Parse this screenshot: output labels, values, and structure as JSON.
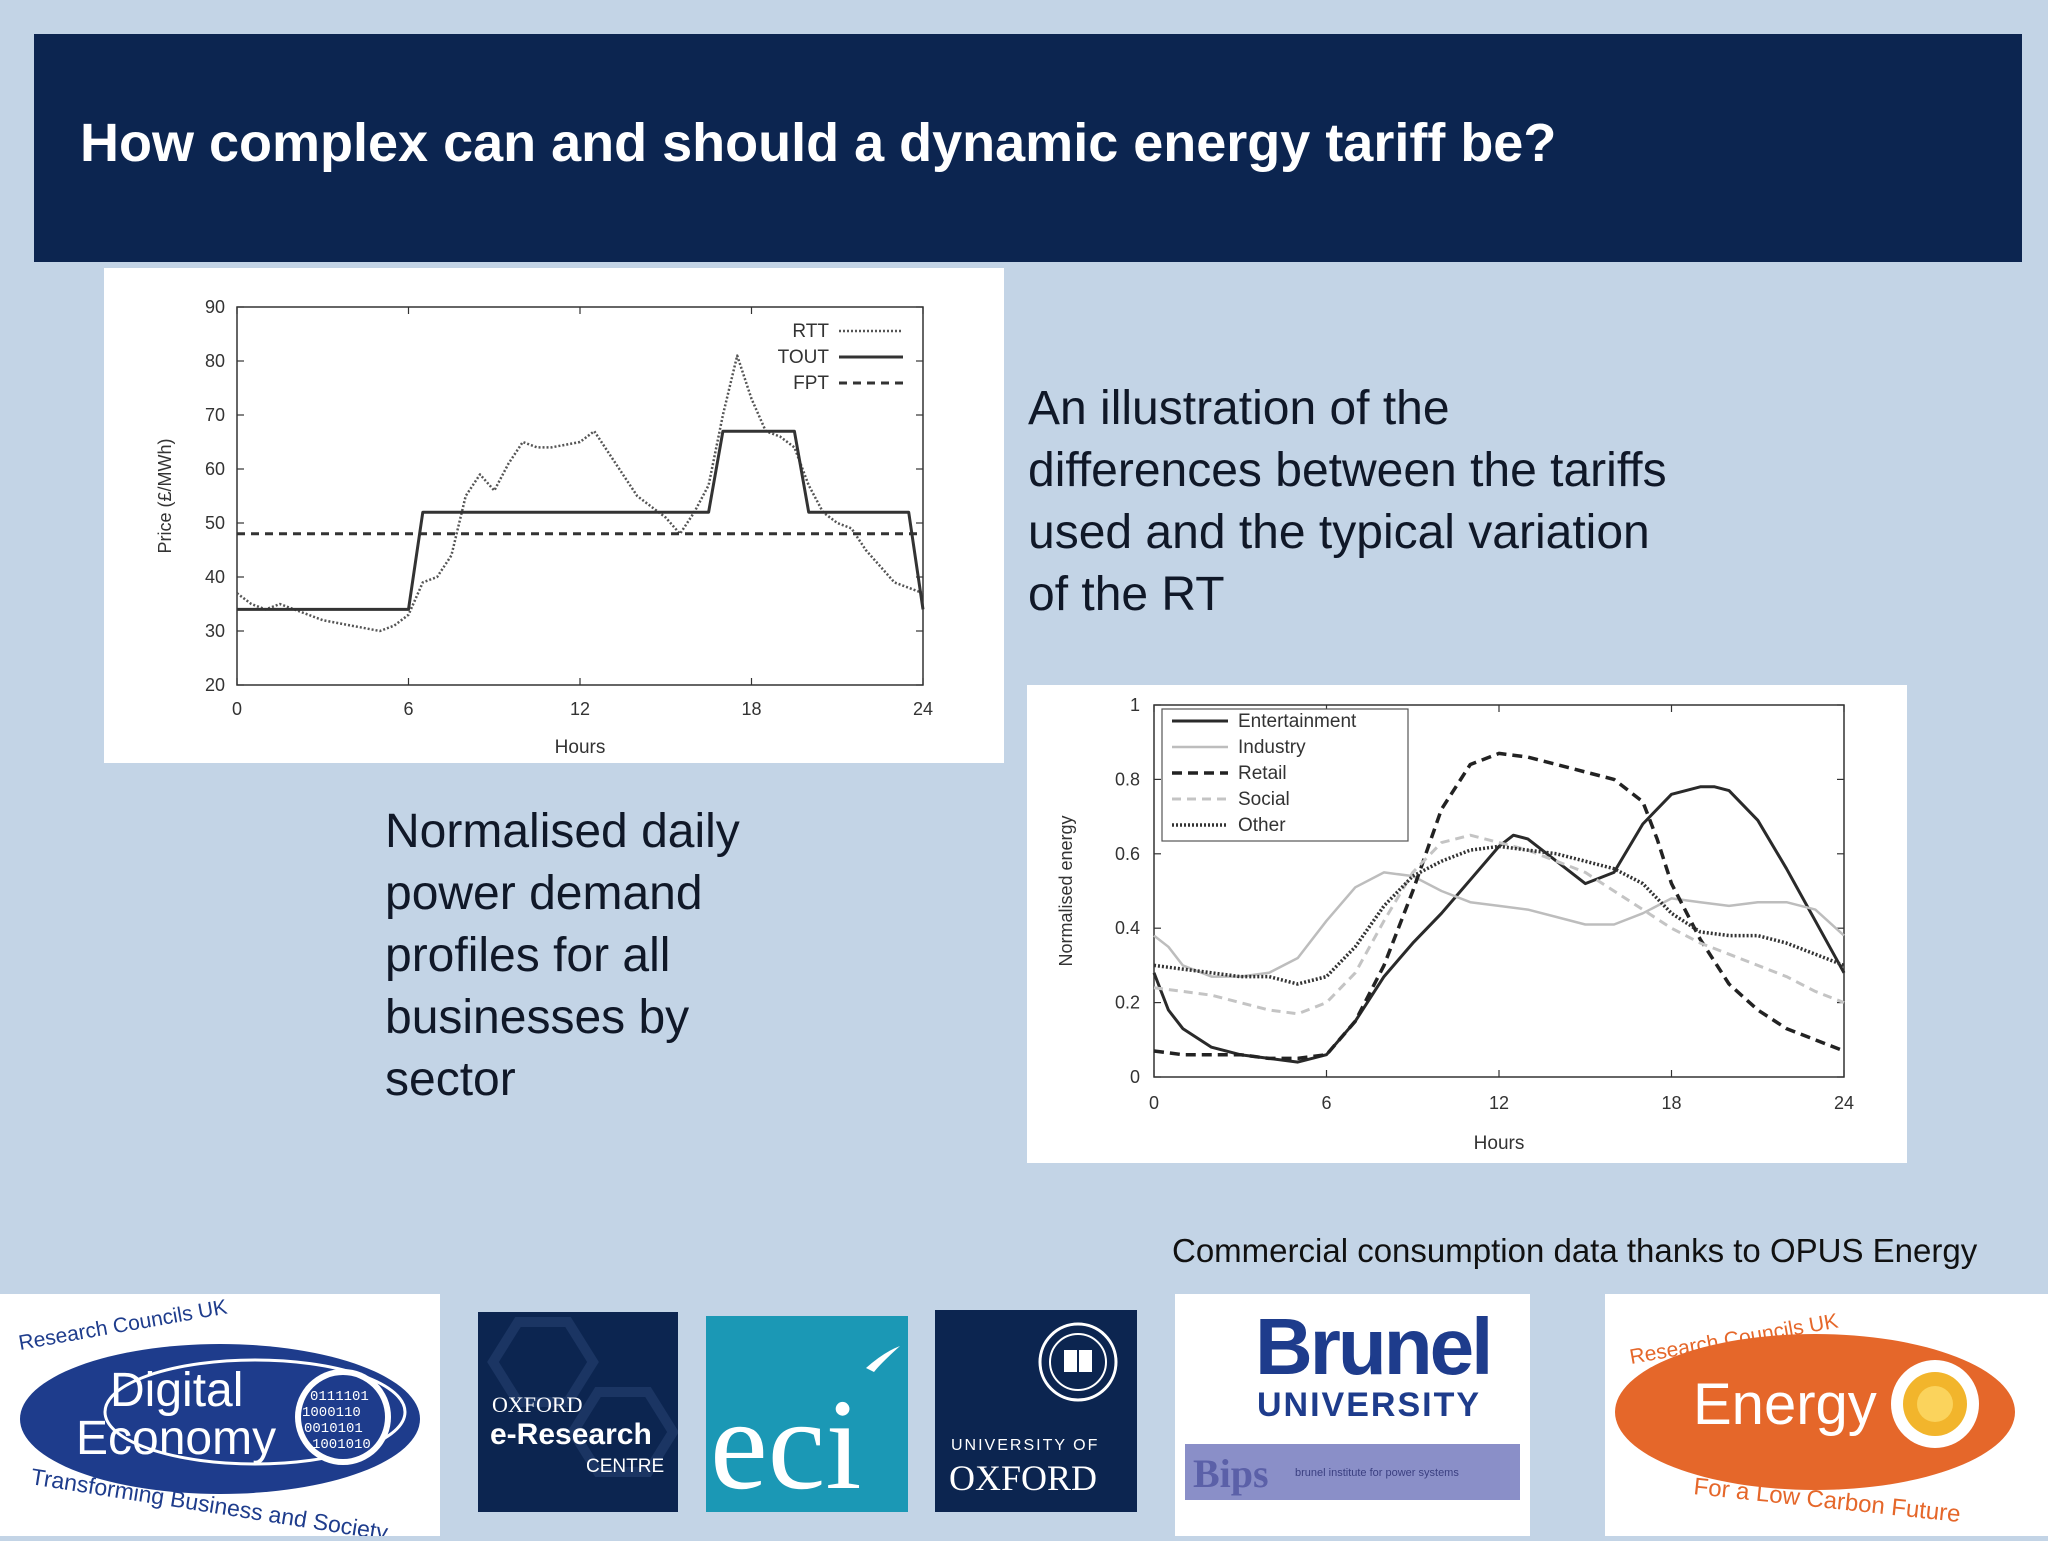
{
  "slide": {
    "title": "How complex can and should a dynamic energy tariff be?",
    "caption_right": "An illustration of the\ndifferences between the tariffs\nused and the typical variation\nof the RT",
    "caption_left": "Normalised daily\npower demand\nprofiles for all\nbusinesses by\nsector",
    "credit": "Commercial consumption data thanks to OPUS Energy"
  },
  "chart_data": [
    {
      "type": "line",
      "title": "",
      "xlabel": "Hours",
      "ylabel": "Price (£/MWh)",
      "xlim": [
        0,
        24
      ],
      "ylim": [
        20,
        90
      ],
      "xticks": [
        0,
        6,
        12,
        18,
        24
      ],
      "yticks": [
        20,
        30,
        40,
        50,
        60,
        70,
        80,
        90
      ],
      "legend_position": "top-right",
      "series": [
        {
          "name": "RTT",
          "style": "dotted",
          "x": [
            0,
            0.5,
            1,
            1.5,
            2,
            2.5,
            3,
            4,
            5,
            5.5,
            6,
            6.5,
            7,
            7.5,
            8,
            8.5,
            9,
            9.5,
            10,
            10.5,
            11,
            12,
            12.5,
            13,
            13.5,
            14,
            14.5,
            15,
            15.5,
            16,
            16.5,
            17,
            17.5,
            18,
            18.5,
            19,
            19.5,
            20,
            20.5,
            21,
            21.5,
            22,
            22.5,
            23,
            23.5,
            24
          ],
          "y": [
            37,
            35,
            34,
            35,
            34,
            33,
            32,
            31,
            30,
            31,
            33,
            39,
            40,
            44,
            55,
            59,
            56,
            61,
            65,
            64,
            64,
            65,
            67,
            63,
            59,
            55,
            53,
            51,
            48,
            52,
            57,
            70,
            81,
            73,
            67,
            66,
            64,
            57,
            52,
            50,
            49,
            45,
            42,
            39,
            38,
            37
          ]
        },
        {
          "name": "TOUT",
          "style": "solid",
          "x": [
            0,
            6,
            6.5,
            16.5,
            17,
            19.5,
            20,
            23.5,
            24
          ],
          "y": [
            34,
            34,
            52,
            52,
            67,
            67,
            52,
            52,
            34
          ]
        },
        {
          "name": "FPT",
          "style": "dashed",
          "x": [
            0,
            24
          ],
          "y": [
            48,
            48
          ]
        }
      ]
    },
    {
      "type": "line",
      "title": "",
      "xlabel": "Hours",
      "ylabel": "Normalised energy",
      "xlim": [
        0,
        24
      ],
      "ylim": [
        0,
        1
      ],
      "xticks": [
        0,
        6,
        12,
        18,
        24
      ],
      "yticks": [
        0,
        0.2,
        0.4,
        0.6,
        0.8,
        1
      ],
      "legend_position": "top-left",
      "series": [
        {
          "name": "Entertainment",
          "style": "solid-dark",
          "x": [
            0,
            0.5,
            1,
            2,
            3,
            4,
            5,
            6,
            7,
            8,
            9,
            10,
            11,
            12,
            12.5,
            13,
            14,
            15,
            16,
            17,
            18,
            19,
            19.5,
            20,
            21,
            22,
            23,
            24
          ],
          "y": [
            0.28,
            0.18,
            0.13,
            0.08,
            0.06,
            0.05,
            0.04,
            0.06,
            0.15,
            0.27,
            0.36,
            0.44,
            0.53,
            0.62,
            0.65,
            0.64,
            0.58,
            0.52,
            0.55,
            0.68,
            0.76,
            0.78,
            0.78,
            0.77,
            0.69,
            0.56,
            0.42,
            0.28
          ]
        },
        {
          "name": "Industry",
          "style": "solid-light",
          "x": [
            0,
            0.5,
            1,
            2,
            3,
            4,
            5,
            6,
            7,
            8,
            9,
            10,
            11,
            12,
            13,
            14,
            15,
            16,
            17,
            18,
            19,
            20,
            21,
            22,
            23,
            24
          ],
          "y": [
            0.38,
            0.35,
            0.3,
            0.27,
            0.27,
            0.28,
            0.32,
            0.42,
            0.51,
            0.55,
            0.54,
            0.5,
            0.47,
            0.46,
            0.45,
            0.43,
            0.41,
            0.41,
            0.44,
            0.48,
            0.47,
            0.46,
            0.47,
            0.47,
            0.45,
            0.38
          ]
        },
        {
          "name": "Retail",
          "style": "dashed-dark",
          "x": [
            0,
            1,
            2,
            3,
            4,
            5,
            6,
            7,
            8,
            9,
            10,
            11,
            12,
            13,
            14,
            15,
            16,
            17,
            17.5,
            18,
            19,
            20,
            21,
            22,
            23,
            24
          ],
          "y": [
            0.07,
            0.06,
            0.06,
            0.06,
            0.05,
            0.05,
            0.06,
            0.15,
            0.3,
            0.5,
            0.72,
            0.84,
            0.87,
            0.86,
            0.84,
            0.82,
            0.8,
            0.74,
            0.64,
            0.52,
            0.37,
            0.25,
            0.18,
            0.13,
            0.1,
            0.07
          ]
        },
        {
          "name": "Social",
          "style": "dashed-light",
          "x": [
            0,
            1,
            2,
            3,
            4,
            5,
            6,
            7,
            8,
            9,
            10,
            11,
            12,
            13,
            14,
            15,
            16,
            17,
            18,
            19,
            20,
            21,
            22,
            23,
            24
          ],
          "y": [
            0.24,
            0.23,
            0.22,
            0.2,
            0.18,
            0.17,
            0.2,
            0.28,
            0.42,
            0.55,
            0.63,
            0.65,
            0.63,
            0.61,
            0.58,
            0.55,
            0.5,
            0.45,
            0.4,
            0.36,
            0.33,
            0.3,
            0.27,
            0.23,
            0.2
          ]
        },
        {
          "name": "Other",
          "style": "dotted-dark",
          "x": [
            0,
            1,
            2,
            3,
            4,
            5,
            6,
            7,
            8,
            9,
            10,
            11,
            12,
            13,
            14,
            15,
            16,
            17,
            18,
            19,
            20,
            21,
            22,
            23,
            24
          ],
          "y": [
            0.3,
            0.29,
            0.28,
            0.27,
            0.27,
            0.25,
            0.27,
            0.35,
            0.46,
            0.54,
            0.58,
            0.61,
            0.62,
            0.61,
            0.6,
            0.58,
            0.56,
            0.52,
            0.44,
            0.39,
            0.38,
            0.38,
            0.36,
            0.33,
            0.3
          ]
        }
      ]
    }
  ],
  "logos": {
    "rcuk_de": {
      "top": "Research Councils UK",
      "line1": "Digital",
      "line2": "Economy",
      "bottom": "Transforming Business and Society",
      "binary": [
        "0111101",
        "1000110",
        "0010101",
        "1001010"
      ]
    },
    "oerc": {
      "line1": "OXFORD",
      "line2": "e-Research",
      "line3": "CENTRE"
    },
    "eci": {
      "text": "eci"
    },
    "oxford": {
      "line1": "UNIVERSITY OF",
      "line2": "OXFORD"
    },
    "brunel": {
      "line1": "Brunel",
      "line2": "UNIVERSITY",
      "sub": "Bips",
      "sub_tagline": "brunel institute for power systems"
    },
    "rcuk_energy": {
      "top": "Research Councils UK",
      "main": "Energy",
      "bottom": "For a Low Carbon Future"
    },
    "colors": {
      "navy": "#0c2550",
      "teal": "#1b98b5",
      "orange": "#e5672a",
      "blue": "#1e3c8c"
    }
  }
}
